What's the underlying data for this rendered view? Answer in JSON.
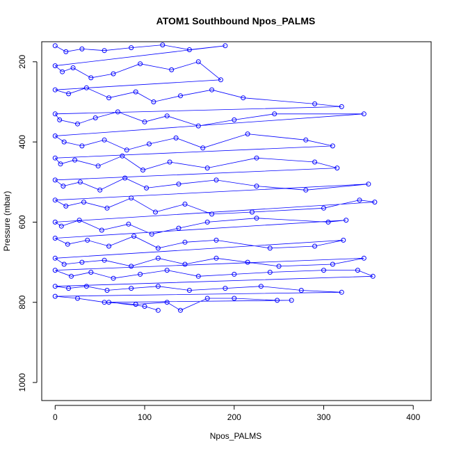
{
  "chart_data": {
    "type": "scatter",
    "title": "ATOM1 Southbound Npos_PALMS",
    "xlabel": "Npos_PALMS",
    "ylabel": "Pressure (mbar)",
    "xlim": [
      -15,
      420
    ],
    "ylim": [
      1045,
      150
    ],
    "y_reversed": true,
    "grid": false,
    "x_ticks": [
      0,
      100,
      200,
      300,
      400
    ],
    "y_ticks": [
      200,
      400,
      600,
      800,
      1000
    ],
    "series_color": "#0000ff",
    "marker": "open-circle",
    "series": [
      {
        "points": [
          [
            0,
            160
          ],
          [
            12,
            175
          ],
          [
            30,
            168
          ],
          [
            55,
            172
          ],
          [
            85,
            165
          ],
          [
            120,
            158
          ],
          [
            150,
            170
          ],
          [
            190,
            160
          ],
          [
            0,
            210
          ],
          [
            8,
            225
          ],
          [
            20,
            215
          ],
          [
            40,
            240
          ],
          [
            65,
            230
          ],
          [
            95,
            205
          ],
          [
            130,
            220
          ],
          [
            160,
            200
          ],
          [
            185,
            245
          ],
          [
            0,
            270
          ],
          [
            15,
            280
          ],
          [
            35,
            265
          ],
          [
            60,
            290
          ],
          [
            90,
            275
          ],
          [
            110,
            300
          ],
          [
            140,
            285
          ],
          [
            175,
            270
          ],
          [
            210,
            290
          ],
          [
            290,
            305
          ],
          [
            320,
            312
          ],
          [
            0,
            330
          ],
          [
            5,
            345
          ],
          [
            25,
            355
          ],
          [
            45,
            340
          ],
          [
            70,
            325
          ],
          [
            100,
            350
          ],
          [
            125,
            335
          ],
          [
            160,
            360
          ],
          [
            200,
            345
          ],
          [
            245,
            330
          ],
          [
            345,
            330
          ],
          [
            0,
            385
          ],
          [
            10,
            400
          ],
          [
            30,
            410
          ],
          [
            55,
            395
          ],
          [
            80,
            420
          ],
          [
            105,
            405
          ],
          [
            135,
            390
          ],
          [
            165,
            415
          ],
          [
            215,
            380
          ],
          [
            280,
            395
          ],
          [
            310,
            410
          ],
          [
            0,
            440
          ],
          [
            6,
            455
          ],
          [
            22,
            445
          ],
          [
            48,
            460
          ],
          [
            75,
            435
          ],
          [
            98,
            470
          ],
          [
            128,
            450
          ],
          [
            170,
            465
          ],
          [
            225,
            440
          ],
          [
            290,
            450
          ],
          [
            315,
            465
          ],
          [
            0,
            495
          ],
          [
            9,
            510
          ],
          [
            28,
            500
          ],
          [
            50,
            520
          ],
          [
            78,
            490
          ],
          [
            102,
            515
          ],
          [
            138,
            505
          ],
          [
            180,
            495
          ],
          [
            225,
            510
          ],
          [
            280,
            520
          ],
          [
            350,
            505
          ],
          [
            0,
            545
          ],
          [
            12,
            560
          ],
          [
            32,
            550
          ],
          [
            58,
            565
          ],
          [
            85,
            540
          ],
          [
            112,
            575
          ],
          [
            145,
            555
          ],
          [
            175,
            580
          ],
          [
            220,
            575
          ],
          [
            300,
            565
          ],
          [
            340,
            545
          ],
          [
            357,
            550
          ],
          [
            0,
            600
          ],
          [
            7,
            610
          ],
          [
            27,
            595
          ],
          [
            52,
            620
          ],
          [
            82,
            605
          ],
          [
            108,
            630
          ],
          [
            138,
            615
          ],
          [
            170,
            600
          ],
          [
            225,
            590
          ],
          [
            305,
            600
          ],
          [
            325,
            595
          ],
          [
            0,
            640
          ],
          [
            14,
            655
          ],
          [
            36,
            645
          ],
          [
            60,
            660
          ],
          [
            88,
            635
          ],
          [
            115,
            665
          ],
          [
            145,
            650
          ],
          [
            180,
            645
          ],
          [
            240,
            665
          ],
          [
            290,
            660
          ],
          [
            322,
            645
          ],
          [
            0,
            690
          ],
          [
            10,
            705
          ],
          [
            30,
            700
          ],
          [
            55,
            695
          ],
          [
            85,
            710
          ],
          [
            115,
            690
          ],
          [
            145,
            705
          ],
          [
            180,
            690
          ],
          [
            215,
            700
          ],
          [
            250,
            710
          ],
          [
            310,
            705
          ],
          [
            345,
            690
          ],
          [
            0,
            720
          ],
          [
            18,
            735
          ],
          [
            40,
            725
          ],
          [
            65,
            740
          ],
          [
            95,
            730
          ],
          [
            125,
            720
          ],
          [
            160,
            735
          ],
          [
            200,
            730
          ],
          [
            240,
            725
          ],
          [
            300,
            720
          ],
          [
            338,
            720
          ],
          [
            355,
            735
          ],
          [
            0,
            760
          ],
          [
            15,
            765
          ],
          [
            35,
            760
          ],
          [
            58,
            770
          ],
          [
            85,
            765
          ],
          [
            115,
            760
          ],
          [
            150,
            770
          ],
          [
            190,
            765
          ],
          [
            230,
            760
          ],
          [
            275,
            770
          ],
          [
            320,
            775
          ],
          [
            0,
            785
          ],
          [
            25,
            790
          ],
          [
            55,
            800
          ],
          [
            90,
            805
          ],
          [
            125,
            800
          ],
          [
            140,
            820
          ],
          [
            170,
            790
          ],
          [
            200,
            790
          ],
          [
            248,
            795
          ],
          [
            264,
            795
          ],
          [
            60,
            800
          ],
          [
            100,
            810
          ],
          [
            115,
            820
          ]
        ]
      }
    ]
  }
}
